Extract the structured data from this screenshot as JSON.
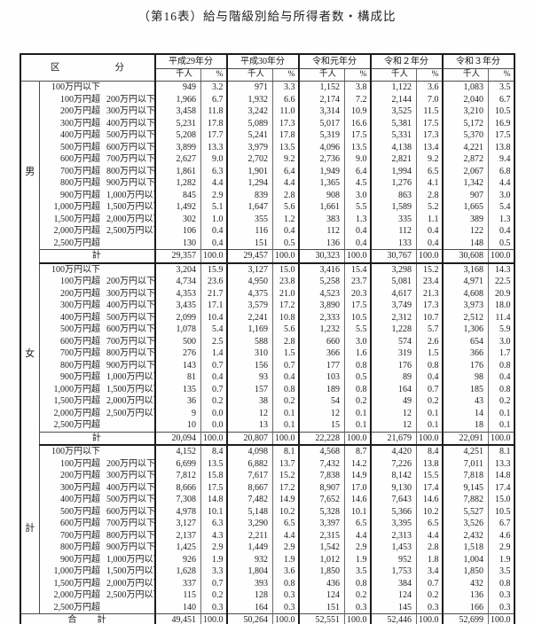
{
  "title": "（第16表）給与階級別給与所得者数・構成比",
  "table": {
    "corner_header": {
      "left": "区",
      "right": "分"
    },
    "years": [
      "平成29年分",
      "平成30年分",
      "令和元年分",
      "令和２年分",
      "令和３年分"
    ],
    "unit_headers": {
      "count": "千人",
      "percent": "%"
    },
    "bracket_labels": [
      {
        "p1": "100万円以下",
        "p2": ""
      },
      {
        "p1": "100万円超",
        "p2": "200万円以下"
      },
      {
        "p1": "200万円超",
        "p2": "300万円以下"
      },
      {
        "p1": "300万円超",
        "p2": "400万円以下"
      },
      {
        "p1": "400万円超",
        "p2": "500万円以下"
      },
      {
        "p1": "500万円超",
        "p2": "600万円以下"
      },
      {
        "p1": "600万円超",
        "p2": "700万円以下"
      },
      {
        "p1": "700万円超",
        "p2": "800万円以下"
      },
      {
        "p1": "800万円超",
        "p2": "900万円以下"
      },
      {
        "p1": "900万円超",
        "p2": "1,000万円以下"
      },
      {
        "p1": "1,000万円超",
        "p2": "1,500万円以下"
      },
      {
        "p1": "1,500万円超",
        "p2": "2,000万円以下"
      },
      {
        "p1": "2,000万円超",
        "p2": "2,500万円以下"
      },
      {
        "p1": "2,500万円超",
        "p2": ""
      }
    ],
    "subtotal_label": "計",
    "grand_total_label": "合　　計",
    "sections": [
      {
        "group": "男",
        "rows": [
          [
            "949",
            "3.2",
            "971",
            "3.3",
            "1,152",
            "3.8",
            "1,122",
            "3.6",
            "1,083",
            "3.5"
          ],
          [
            "1,966",
            "6.7",
            "1,932",
            "6.6",
            "2,174",
            "7.2",
            "2,144",
            "7.0",
            "2,040",
            "6.7"
          ],
          [
            "3,458",
            "11.8",
            "3,242",
            "11.0",
            "3,314",
            "10.9",
            "3,525",
            "11.5",
            "3,210",
            "10.5"
          ],
          [
            "5,231",
            "17.8",
            "5,089",
            "17.3",
            "5,017",
            "16.6",
            "5,381",
            "17.5",
            "5,172",
            "16.9"
          ],
          [
            "5,208",
            "17.7",
            "5,241",
            "17.8",
            "5,319",
            "17.5",
            "5,331",
            "17.3",
            "5,370",
            "17.5"
          ],
          [
            "3,899",
            "13.3",
            "3,979",
            "13.5",
            "4,096",
            "13.5",
            "4,138",
            "13.4",
            "4,221",
            "13.8"
          ],
          [
            "2,627",
            "9.0",
            "2,702",
            "9.2",
            "2,736",
            "9.0",
            "2,821",
            "9.2",
            "2,872",
            "9.4"
          ],
          [
            "1,861",
            "6.3",
            "1,901",
            "6.4",
            "1,949",
            "6.4",
            "1,994",
            "6.5",
            "2,067",
            "6.8"
          ],
          [
            "1,282",
            "4.4",
            "1,294",
            "4.4",
            "1,365",
            "4.5",
            "1,276",
            "4.1",
            "1,342",
            "4.4"
          ],
          [
            "845",
            "2.9",
            "839",
            "2.8",
            "908",
            "3.0",
            "863",
            "2.8",
            "907",
            "3.0"
          ],
          [
            "1,492",
            "5.1",
            "1,647",
            "5.6",
            "1,661",
            "5.5",
            "1,589",
            "5.2",
            "1,665",
            "5.4"
          ],
          [
            "302",
            "1.0",
            "355",
            "1.2",
            "383",
            "1.3",
            "335",
            "1.1",
            "389",
            "1.3"
          ],
          [
            "106",
            "0.4",
            "116",
            "0.4",
            "112",
            "0.4",
            "112",
            "0.4",
            "122",
            "0.4"
          ],
          [
            "130",
            "0.4",
            "151",
            "0.5",
            "136",
            "0.4",
            "133",
            "0.4",
            "148",
            "0.5"
          ]
        ],
        "subtotal": [
          "29,357",
          "100.0",
          "29,457",
          "100.0",
          "30,323",
          "100.0",
          "30,767",
          "100.0",
          "30,608",
          "100.0"
        ],
        "grand": false
      },
      {
        "group": "女",
        "rows": [
          [
            "3,204",
            "15.9",
            "3,127",
            "15.0",
            "3,416",
            "15.4",
            "3,298",
            "15.2",
            "3,168",
            "14.3"
          ],
          [
            "4,734",
            "23.6",
            "4,950",
            "23.8",
            "5,258",
            "23.7",
            "5,081",
            "23.4",
            "4,971",
            "22.5"
          ],
          [
            "4,353",
            "21.7",
            "4,375",
            "21.0",
            "4,523",
            "20.3",
            "4,617",
            "21.3",
            "4,608",
            "20.9"
          ],
          [
            "3,435",
            "17.1",
            "3,579",
            "17.2",
            "3,890",
            "17.5",
            "3,749",
            "17.3",
            "3,973",
            "18.0"
          ],
          [
            "2,099",
            "10.4",
            "2,241",
            "10.8",
            "2,333",
            "10.5",
            "2,312",
            "10.7",
            "2,512",
            "11.4"
          ],
          [
            "1,078",
            "5.4",
            "1,169",
            "5.6",
            "1,232",
            "5.5",
            "1,228",
            "5.7",
            "1,306",
            "5.9"
          ],
          [
            "500",
            "2.5",
            "588",
            "2.8",
            "660",
            "3.0",
            "574",
            "2.6",
            "654",
            "3.0"
          ],
          [
            "276",
            "1.4",
            "310",
            "1.5",
            "366",
            "1.6",
            "319",
            "1.5",
            "366",
            "1.7"
          ],
          [
            "143",
            "0.7",
            "156",
            "0.7",
            "177",
            "0.8",
            "176",
            "0.8",
            "176",
            "0.8"
          ],
          [
            "81",
            "0.4",
            "93",
            "0.4",
            "103",
            "0.5",
            "89",
            "0.4",
            "98",
            "0.4"
          ],
          [
            "135",
            "0.7",
            "157",
            "0.8",
            "189",
            "0.8",
            "164",
            "0.7",
            "185",
            "0.8"
          ],
          [
            "36",
            "0.2",
            "38",
            "0.2",
            "54",
            "0.2",
            "49",
            "0.2",
            "43",
            "0.2"
          ],
          [
            "9",
            "0.0",
            "12",
            "0.1",
            "12",
            "0.1",
            "12",
            "0.1",
            "14",
            "0.1"
          ],
          [
            "10",
            "0.0",
            "13",
            "0.1",
            "15",
            "0.1",
            "12",
            "0.1",
            "18",
            "0.1"
          ]
        ],
        "subtotal": [
          "20,094",
          "100.0",
          "20,807",
          "100.0",
          "22,228",
          "100.0",
          "21,679",
          "100.0",
          "22,091",
          "100.0"
        ],
        "grand": false
      },
      {
        "group": "計",
        "rows": [
          [
            "4,152",
            "8.4",
            "4,098",
            "8.1",
            "4,568",
            "8.7",
            "4,420",
            "8.4",
            "4,251",
            "8.1"
          ],
          [
            "6,699",
            "13.5",
            "6,882",
            "13.7",
            "7,432",
            "14.2",
            "7,226",
            "13.8",
            "7,011",
            "13.3"
          ],
          [
            "7,812",
            "15.8",
            "7,617",
            "15.2",
            "7,838",
            "14.9",
            "8,142",
            "15.5",
            "7,818",
            "14.8"
          ],
          [
            "8,666",
            "17.5",
            "8,667",
            "17.2",
            "8,907",
            "17.0",
            "9,130",
            "17.4",
            "9,145",
            "17.4"
          ],
          [
            "7,308",
            "14.8",
            "7,482",
            "14.9",
            "7,652",
            "14.6",
            "7,643",
            "14.6",
            "7,882",
            "15.0"
          ],
          [
            "4,978",
            "10.1",
            "5,148",
            "10.2",
            "5,328",
            "10.1",
            "5,366",
            "10.2",
            "5,527",
            "10.5"
          ],
          [
            "3,127",
            "6.3",
            "3,290",
            "6.5",
            "3,397",
            "6.5",
            "3,395",
            "6.5",
            "3,526",
            "6.7"
          ],
          [
            "2,137",
            "4.3",
            "2,211",
            "4.4",
            "2,315",
            "4.4",
            "2,313",
            "4.4",
            "2,432",
            "4.6"
          ],
          [
            "1,425",
            "2.9",
            "1,449",
            "2.9",
            "1,542",
            "2.9",
            "1,453",
            "2.8",
            "1,518",
            "2.9"
          ],
          [
            "926",
            "1.9",
            "932",
            "1.9",
            "1,012",
            "1.9",
            "952",
            "1.8",
            "1,004",
            "1.9"
          ],
          [
            "1,628",
            "3.3",
            "1,804",
            "3.6",
            "1,850",
            "3.5",
            "1,753",
            "3.4",
            "1,850",
            "3.5"
          ],
          [
            "337",
            "0.7",
            "393",
            "0.8",
            "436",
            "0.8",
            "384",
            "0.7",
            "432",
            "0.8"
          ],
          [
            "115",
            "0.2",
            "128",
            "0.3",
            "124",
            "0.2",
            "124",
            "0.2",
            "136",
            "0.3"
          ],
          [
            "140",
            "0.3",
            "164",
            "0.3",
            "151",
            "0.3",
            "145",
            "0.3",
            "166",
            "0.3"
          ]
        ],
        "subtotal": [
          "49,451",
          "100.0",
          "50,264",
          "100.0",
          "52,551",
          "100.0",
          "52,446",
          "100.0",
          "52,699",
          "100.0"
        ],
        "grand": true
      }
    ]
  }
}
